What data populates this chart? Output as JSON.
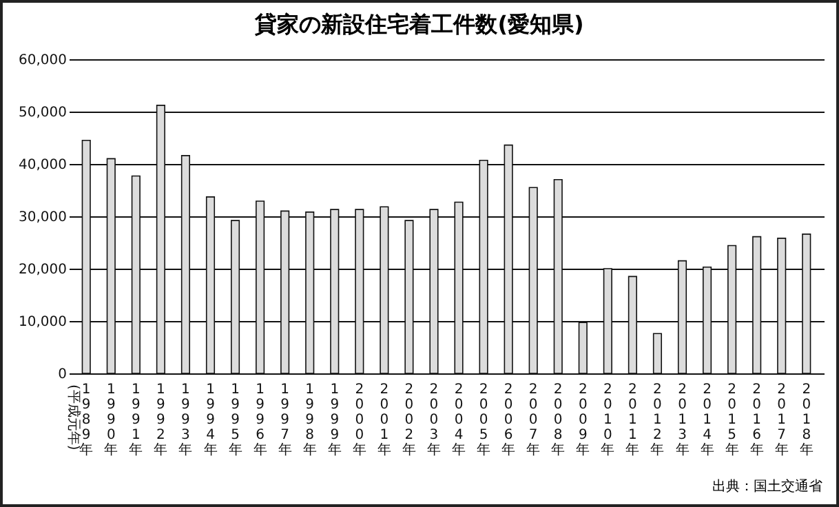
{
  "chart_data": {
    "type": "bar",
    "title": "貸家の新設住宅着工件数(愛知県)",
    "categories": [
      "1989年",
      "1990年",
      "1991年",
      "1992年",
      "1993年",
      "1994年",
      "1995年",
      "1996年",
      "1997年",
      "1998年",
      "1999年",
      "2000年",
      "2001年",
      "2002年",
      "2003年",
      "2004年",
      "2005年",
      "2006年",
      "2007年",
      "2008年",
      "2009年",
      "2010年",
      "2011年",
      "2012年",
      "2013年",
      "2014年",
      "2015年",
      "2016年",
      "2017年",
      "2018年"
    ],
    "values": [
      44500,
      41000,
      37700,
      51200,
      41600,
      33700,
      29200,
      32900,
      31000,
      30800,
      31300,
      31300,
      31800,
      29200,
      31300,
      32700,
      40700,
      43600,
      35500,
      37000,
      9700,
      20000,
      18500,
      7600,
      21500,
      20300,
      24400,
      26100,
      25800,
      26600
    ],
    "color": "#dcdcdc",
    "ylim": [
      0,
      60000
    ],
    "yticks": [
      0,
      {
        "value": 10000,
        "label": "10,000"
      },
      {
        "value": 20000,
        "label": "20,000"
      },
      {
        "value": 30000,
        "label": "30,000"
      },
      {
        "value": 40000,
        "label": "40,000"
      },
      {
        "value": 50000,
        "label": "50,000"
      },
      {
        "value": 60000,
        "label": "60,000"
      }
    ],
    "grid": "y",
    "annotations": [
      "(平成元年)",
      "出典：国土交通省"
    ]
  }
}
